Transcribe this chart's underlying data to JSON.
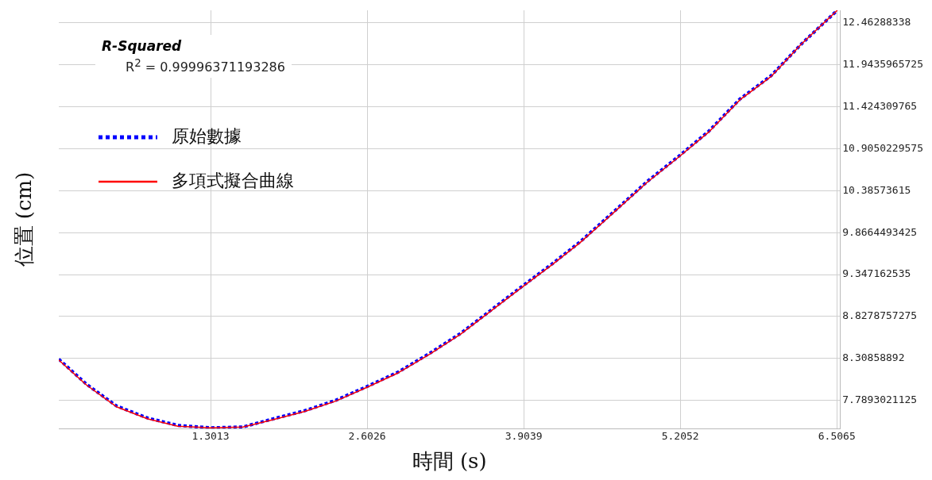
{
  "chart_data": {
    "type": "line",
    "xlabel": "時間 (s)",
    "ylabel": "位置 (cm)",
    "annotations": [
      "R-Squared",
      "R$^{2}$ = 0.99996371193286"
    ],
    "x": [
      0.04,
      0.27,
      0.52,
      0.78,
      1.03,
      1.3,
      1.57,
      1.82,
      2.08,
      2.34,
      2.6,
      2.86,
      3.12,
      3.38,
      3.88,
      4.14,
      4.37,
      4.67,
      4.93,
      5.19,
      5.44,
      5.7,
      5.96,
      6.21,
      6.51
    ],
    "series": [
      {
        "name": "原始數據",
        "color": "#0000ff",
        "line_style": "dotted",
        "values": [
          8.3,
          7.99,
          7.72,
          7.57,
          7.48,
          7.45,
          7.46,
          7.56,
          7.66,
          7.79,
          7.96,
          8.14,
          8.37,
          8.62,
          9.19,
          9.48,
          9.75,
          10.15,
          10.5,
          10.81,
          11.12,
          11.52,
          11.81,
          12.2,
          12.62
        ]
      },
      {
        "name": "多項式擬合曲線",
        "color": "#ff0000",
        "line_style": "solid",
        "values": [
          8.29,
          7.98,
          7.71,
          7.56,
          7.47,
          7.45,
          7.46,
          7.55,
          7.65,
          7.78,
          7.95,
          8.13,
          8.36,
          8.61,
          9.18,
          9.47,
          9.74,
          10.14,
          10.49,
          10.8,
          11.11,
          11.51,
          11.8,
          12.2,
          12.62
        ]
      }
    ],
    "xlim": [
      0.04,
      6.533
    ],
    "xticks": [
      1.3013,
      2.6026,
      3.9039,
      5.2052,
      6.5065
    ],
    "ylim": [
      7.44,
      12.62
    ],
    "yticks": [
      7.7893021125,
      8.30858892,
      8.8278757275,
      9.347162535,
      9.8664493425,
      10.38573615,
      10.9050229575,
      11.424309765,
      11.9435965725,
      12.46288338
    ],
    "grid": true,
    "legend": "top left",
    "marker": "none"
  }
}
